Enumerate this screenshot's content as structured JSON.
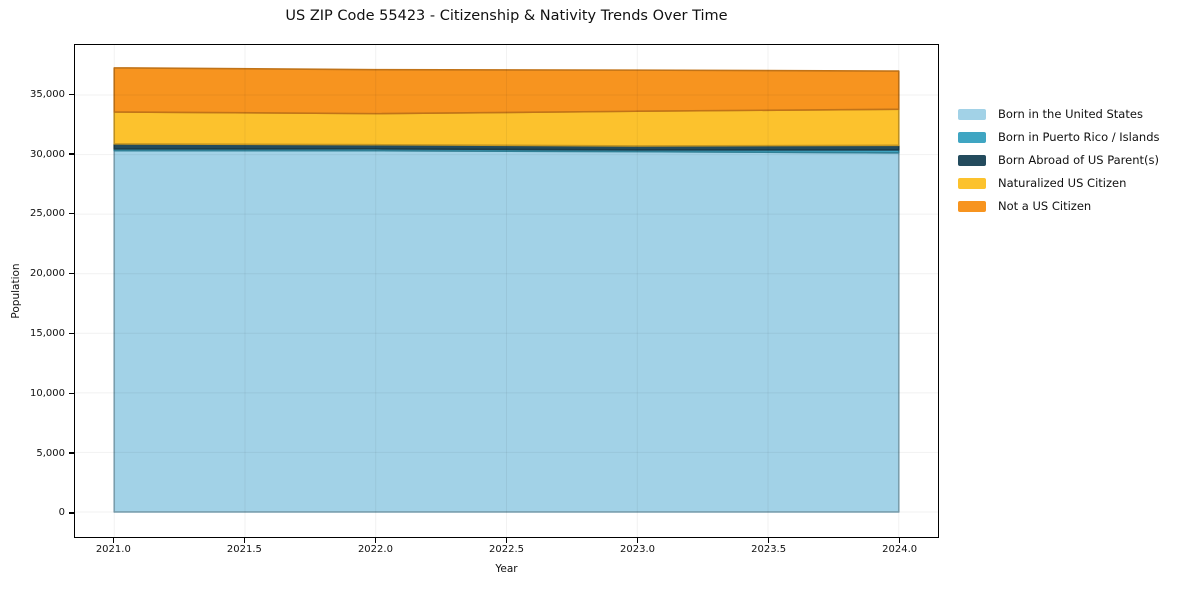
{
  "title": "US ZIP Code 55423 - Citizenship & Nativity Trends Over Time",
  "colors": {
    "background": "#ffffff",
    "spine": "#000000",
    "grid": "rgba(0,0,0,0.055)",
    "text": "#111111"
  },
  "chart_data": {
    "type": "area",
    "stacked": true,
    "title": "US ZIP Code 55423 - Citizenship & Nativity Trends Over Time",
    "xlabel": "Year",
    "ylabel": "Population",
    "x": [
      2021,
      2022,
      2023,
      2024
    ],
    "series": [
      {
        "name": "Born in the United States",
        "color": "#a2d2e7",
        "values": [
          30330,
          30330,
          30250,
          30150
        ]
      },
      {
        "name": "Born in Puerto Rico / Islands",
        "color": "#3fa5c2",
        "values": [
          150,
          160,
          150,
          250
        ]
      },
      {
        "name": "Born Abroad of US Parent(s)",
        "color": "#234b5d",
        "values": [
          420,
          340,
          330,
          380
        ]
      },
      {
        "name": "Naturalized US Citizen",
        "color": "#fcc22d",
        "values": [
          2680,
          2610,
          2910,
          3030
        ]
      },
      {
        "name": "Not a US Citizen",
        "color": "#f7941f",
        "values": [
          3700,
          3690,
          3450,
          3200
        ]
      }
    ],
    "totals": [
      37280,
      37130,
      37090,
      37010
    ],
    "xlim": [
      2020.85,
      2024.15
    ],
    "ylim": [
      -2100,
      39200
    ],
    "xticks": {
      "values": [
        2021.0,
        2021.5,
        2022.0,
        2022.5,
        2023.0,
        2023.5,
        2024.0
      ],
      "labels": [
        "2021.0",
        "2021.5",
        "2022.0",
        "2022.5",
        "2023.0",
        "2023.5",
        "2024.0"
      ]
    },
    "yticks": {
      "values": [
        0,
        5000,
        10000,
        15000,
        20000,
        25000,
        30000,
        35000
      ],
      "labels": [
        "0",
        "5,000",
        "10,000",
        "15,000",
        "20,000",
        "25,000",
        "30,000",
        "35,000"
      ]
    },
    "grid": true,
    "legend_position": "right"
  }
}
